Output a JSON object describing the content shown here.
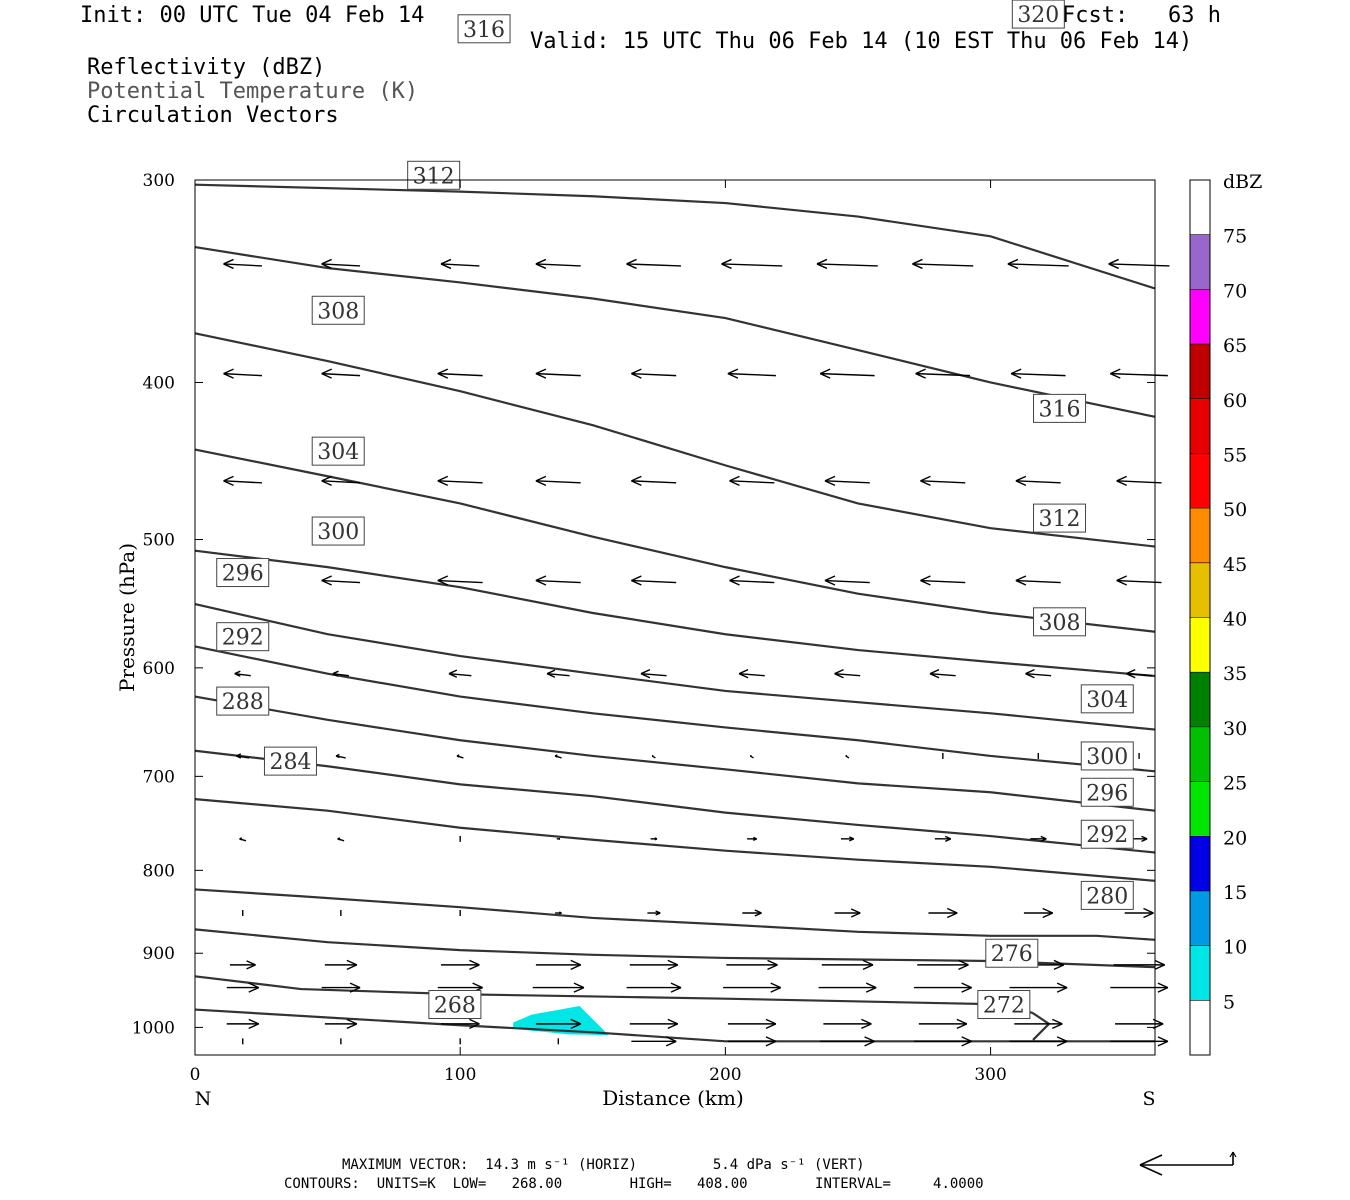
{
  "header": {
    "init": "Init: 00 UTC Tue 04 Feb 14",
    "fcst": "Fcst:   63 h",
    "valid": "Valid: 15 UTC Thu 06 Feb 14 (10 EST Thu 06 Feb 14)",
    "field1": "Reflectivity (dBZ)",
    "field2": "Potential Temperature (K)",
    "field3": "Circulation Vectors"
  },
  "footer": {
    "max_vector": "MAXIMUM VECTOR:  14.3 m s⁻¹ (HORIZ)         5.4 dPa s⁻¹ (VERT)",
    "contours": "CONTOURS:  UNITS=K  LOW=   268.00        HIGH=   408.00        INTERVAL=     4.0000"
  },
  "colors": {
    "contour": "#333333",
    "reflectivity_fill": "#00e5e5"
  },
  "chart_data": {
    "type": "cross-section",
    "xlabel": "Distance (km)",
    "ylabel": "Pressure (hPa)",
    "xlim": [
      0,
      362
    ],
    "ylim": [
      1040,
      300
    ],
    "y_scale": "log",
    "xticks": [
      0,
      100,
      200,
      300
    ],
    "yticks": [
      300,
      400,
      500,
      600,
      700,
      800,
      900,
      1000
    ],
    "x_end_labels": {
      "left": "N",
      "right": "S"
    },
    "colorbar": {
      "title": "dBZ",
      "levels": [
        5,
        10,
        15,
        20,
        25,
        30,
        35,
        40,
        45,
        50,
        55,
        60,
        65,
        70,
        75
      ],
      "colors": [
        "#00e5e5",
        "#0099e6",
        "#0000e6",
        "#00e600",
        "#00c000",
        "#008000",
        "#ffff00",
        "#e6c000",
        "#ff8c00",
        "#ff0000",
        "#e60000",
        "#c00000",
        "#ff00ff",
        "#9966cc"
      ]
    },
    "reflectivity_area": {
      "value_range": "5-10 dBZ",
      "points": [
        [
          120,
          993
        ],
        [
          127,
          982
        ],
        [
          145,
          970
        ],
        [
          156,
          1011
        ],
        [
          141,
          1010
        ],
        [
          120,
          1002
        ]
      ]
    },
    "isentropes": [
      {
        "theta": 268,
        "label": "268",
        "label_at": [
          98,
          968
        ],
        "points": [
          [
            0,
            975
          ],
          [
            50,
            986
          ],
          [
            100,
            997
          ],
          [
            150,
            1007
          ],
          [
            200,
            1020
          ],
          [
            250,
            1020
          ],
          [
            300,
            1020
          ],
          [
            362,
            1020
          ]
        ]
      },
      {
        "theta": 272,
        "label": "272",
        "label_at": [
          305,
          968
        ],
        "points": [
          [
            0,
            930
          ],
          [
            40,
            947
          ],
          [
            100,
            954
          ],
          [
            150,
            957
          ],
          [
            200,
            960
          ],
          [
            280,
            966
          ],
          [
            307,
            968
          ],
          [
            316,
            980
          ],
          [
            322,
            995
          ],
          [
            316,
            1018
          ]
        ]
      },
      {
        "theta": 276,
        "label": "276",
        "label_at": [
          308,
          900
        ],
        "points": [
          [
            0,
            870
          ],
          [
            50,
            886
          ],
          [
            100,
            896
          ],
          [
            150,
            902
          ],
          [
            200,
            906
          ],
          [
            250,
            908
          ],
          [
            300,
            910
          ],
          [
            362,
            918
          ]
        ]
      },
      {
        "theta": 280,
        "label": "280",
        "label_at": [
          344,
          829
        ],
        "points": [
          [
            0,
            822
          ],
          [
            40,
            830
          ],
          [
            100,
            843
          ],
          [
            150,
            856
          ],
          [
            200,
            864
          ],
          [
            250,
            873
          ],
          [
            300,
            878
          ],
          [
            340,
            878
          ],
          [
            362,
            883
          ]
        ]
      },
      {
        "theta": 284,
        "label": "284",
        "label_at": [
          36,
          685
        ],
        "points": [
          [
            0,
            723
          ],
          [
            50,
            735
          ],
          [
            100,
            753
          ],
          [
            150,
            766
          ],
          [
            200,
            778
          ],
          [
            250,
            788
          ],
          [
            300,
            796
          ],
          [
            362,
            812
          ]
        ]
      },
      {
        "theta": 288,
        "label": "288",
        "label_at": [
          18,
          629
        ],
        "points": [
          [
            0,
            675
          ],
          [
            50,
            690
          ],
          [
            100,
            708
          ],
          [
            150,
            720
          ],
          [
            200,
            737
          ],
          [
            250,
            750
          ],
          [
            300,
            762
          ],
          [
            362,
            780
          ]
        ]
      },
      {
        "theta": 292,
        "label": "292",
        "label_at": [
          18,
          574
        ],
        "points": [
          [
            0,
            625
          ],
          [
            50,
            646
          ],
          [
            100,
            665
          ],
          [
            150,
            680
          ],
          [
            200,
            693
          ],
          [
            250,
            707
          ],
          [
            300,
            716
          ],
          [
            362,
            735
          ]
        ]
      },
      {
        "theta": 296,
        "label": "296",
        "label_at": [
          18,
          524
        ],
        "points": [
          [
            0,
            582
          ],
          [
            50,
            605
          ],
          [
            100,
            625
          ],
          [
            150,
            640
          ],
          [
            200,
            653
          ],
          [
            250,
            665
          ],
          [
            300,
            680
          ],
          [
            362,
            695
          ]
        ]
      },
      {
        "theta": 300,
        "label": "300",
        "label_at": [
          54,
          494
        ],
        "points": [
          [
            0,
            548
          ],
          [
            50,
            572
          ],
          [
            100,
            590
          ],
          [
            150,
            605
          ],
          [
            200,
            620
          ],
          [
            250,
            630
          ],
          [
            300,
            640
          ],
          [
            362,
            655
          ]
        ]
      },
      {
        "theta": 304,
        "label": "304",
        "label_at": [
          54,
          441
        ],
        "points": [
          [
            0,
            508
          ],
          [
            50,
            520
          ],
          [
            100,
            535
          ],
          [
            150,
            555
          ],
          [
            200,
            572
          ],
          [
            250,
            585
          ],
          [
            300,
            595
          ],
          [
            362,
            607
          ]
        ]
      },
      {
        "theta": 308,
        "label": "308",
        "label_at": [
          54,
          361
        ],
        "points": [
          [
            0,
            440
          ],
          [
            50,
            457
          ],
          [
            100,
            475
          ],
          [
            150,
            498
          ],
          [
            200,
            520
          ],
          [
            250,
            540
          ],
          [
            300,
            555
          ],
          [
            362,
            570
          ]
        ]
      },
      {
        "theta": 312,
        "label": "312",
        "label_at": [
          90,
          298
        ],
        "points": [
          [
            0,
            373
          ],
          [
            50,
            388
          ],
          [
            100,
            405
          ],
          [
            150,
            425
          ],
          [
            200,
            450
          ],
          [
            250,
            475
          ],
          [
            300,
            492
          ],
          [
            362,
            505
          ]
        ]
      },
      {
        "theta": 316,
        "label": "316",
        "label_at": [
          109,
          242
        ],
        "points": [
          [
            0,
            330
          ],
          [
            50,
            340
          ],
          [
            100,
            347
          ],
          [
            150,
            355
          ],
          [
            200,
            365
          ],
          [
            250,
            382
          ],
          [
            300,
            400
          ],
          [
            362,
            420
          ]
        ]
      },
      {
        "theta": 320,
        "label": "320",
        "label_at": [
          318,
          237
        ],
        "points": [
          [
            0,
            302
          ],
          [
            100,
            305
          ],
          [
            150,
            307
          ],
          [
            200,
            310
          ],
          [
            250,
            316
          ],
          [
            300,
            325
          ],
          [
            362,
            350
          ]
        ]
      }
    ],
    "extra_labels": [
      {
        "label": "316",
        "x": 326,
        "p": 415
      },
      {
        "label": "312",
        "x": 326,
        "p": 485
      },
      {
        "label": "308",
        "x": 326,
        "p": 562
      },
      {
        "label": "304",
        "x": 344,
        "p": 627
      },
      {
        "label": "300",
        "x": 344,
        "p": 680
      },
      {
        "label": "296",
        "x": 344,
        "p": 716
      },
      {
        "label": "292",
        "x": 344,
        "p": 760
      }
    ],
    "vectors": {
      "x_positions": [
        18,
        55,
        100,
        137,
        173,
        210,
        246,
        282,
        318,
        356
      ],
      "rows": [
        {
          "p": 338,
          "u": [
            -12,
            -12,
            -12,
            -14,
            -17,
            -19,
            -19,
            -19,
            -19,
            -19
          ]
        },
        {
          "p": 395,
          "u": [
            -12,
            -12,
            -14,
            -14,
            -14,
            -15,
            -17,
            -17,
            -17,
            -18
          ]
        },
        {
          "p": 460,
          "u": [
            -12,
            -12,
            -14,
            -14,
            -14,
            -14,
            -14,
            -14,
            -14,
            -14
          ]
        },
        {
          "p": 530,
          "u": [
            -12,
            -12,
            -14,
            -14,
            -14,
            -14,
            -14,
            -14,
            -14,
            -14
          ]
        },
        {
          "p": 605,
          "u": [
            -5,
            -5,
            -7,
            -7,
            -8,
            -8,
            -8,
            -8,
            -8,
            -8
          ]
        },
        {
          "p": 680,
          "u": [
            -4,
            -3,
            -2,
            -2,
            -1,
            -1,
            -1,
            0,
            0,
            0
          ]
        },
        {
          "p": 765,
          "u": [
            -2,
            -2,
            0,
            1,
            2,
            3,
            4,
            5,
            5,
            5
          ]
        },
        {
          "p": 850,
          "u": [
            0,
            0,
            0,
            2,
            4,
            6,
            8,
            9,
            9,
            9
          ]
        },
        {
          "p": 915,
          "u": [
            8,
            10,
            12,
            14,
            15,
            16,
            16,
            16,
            16,
            16
          ]
        },
        {
          "p": 945,
          "u": [
            10,
            12,
            14,
            16,
            17,
            18,
            18,
            18,
            18,
            18
          ]
        },
        {
          "p": 995,
          "u": [
            10,
            10,
            12,
            14,
            15,
            15,
            15,
            15,
            15,
            15
          ]
        },
        {
          "p": 1020,
          "u": [
            0,
            0,
            0,
            0,
            14,
            15,
            17,
            18,
            18,
            18
          ]
        }
      ]
    }
  }
}
